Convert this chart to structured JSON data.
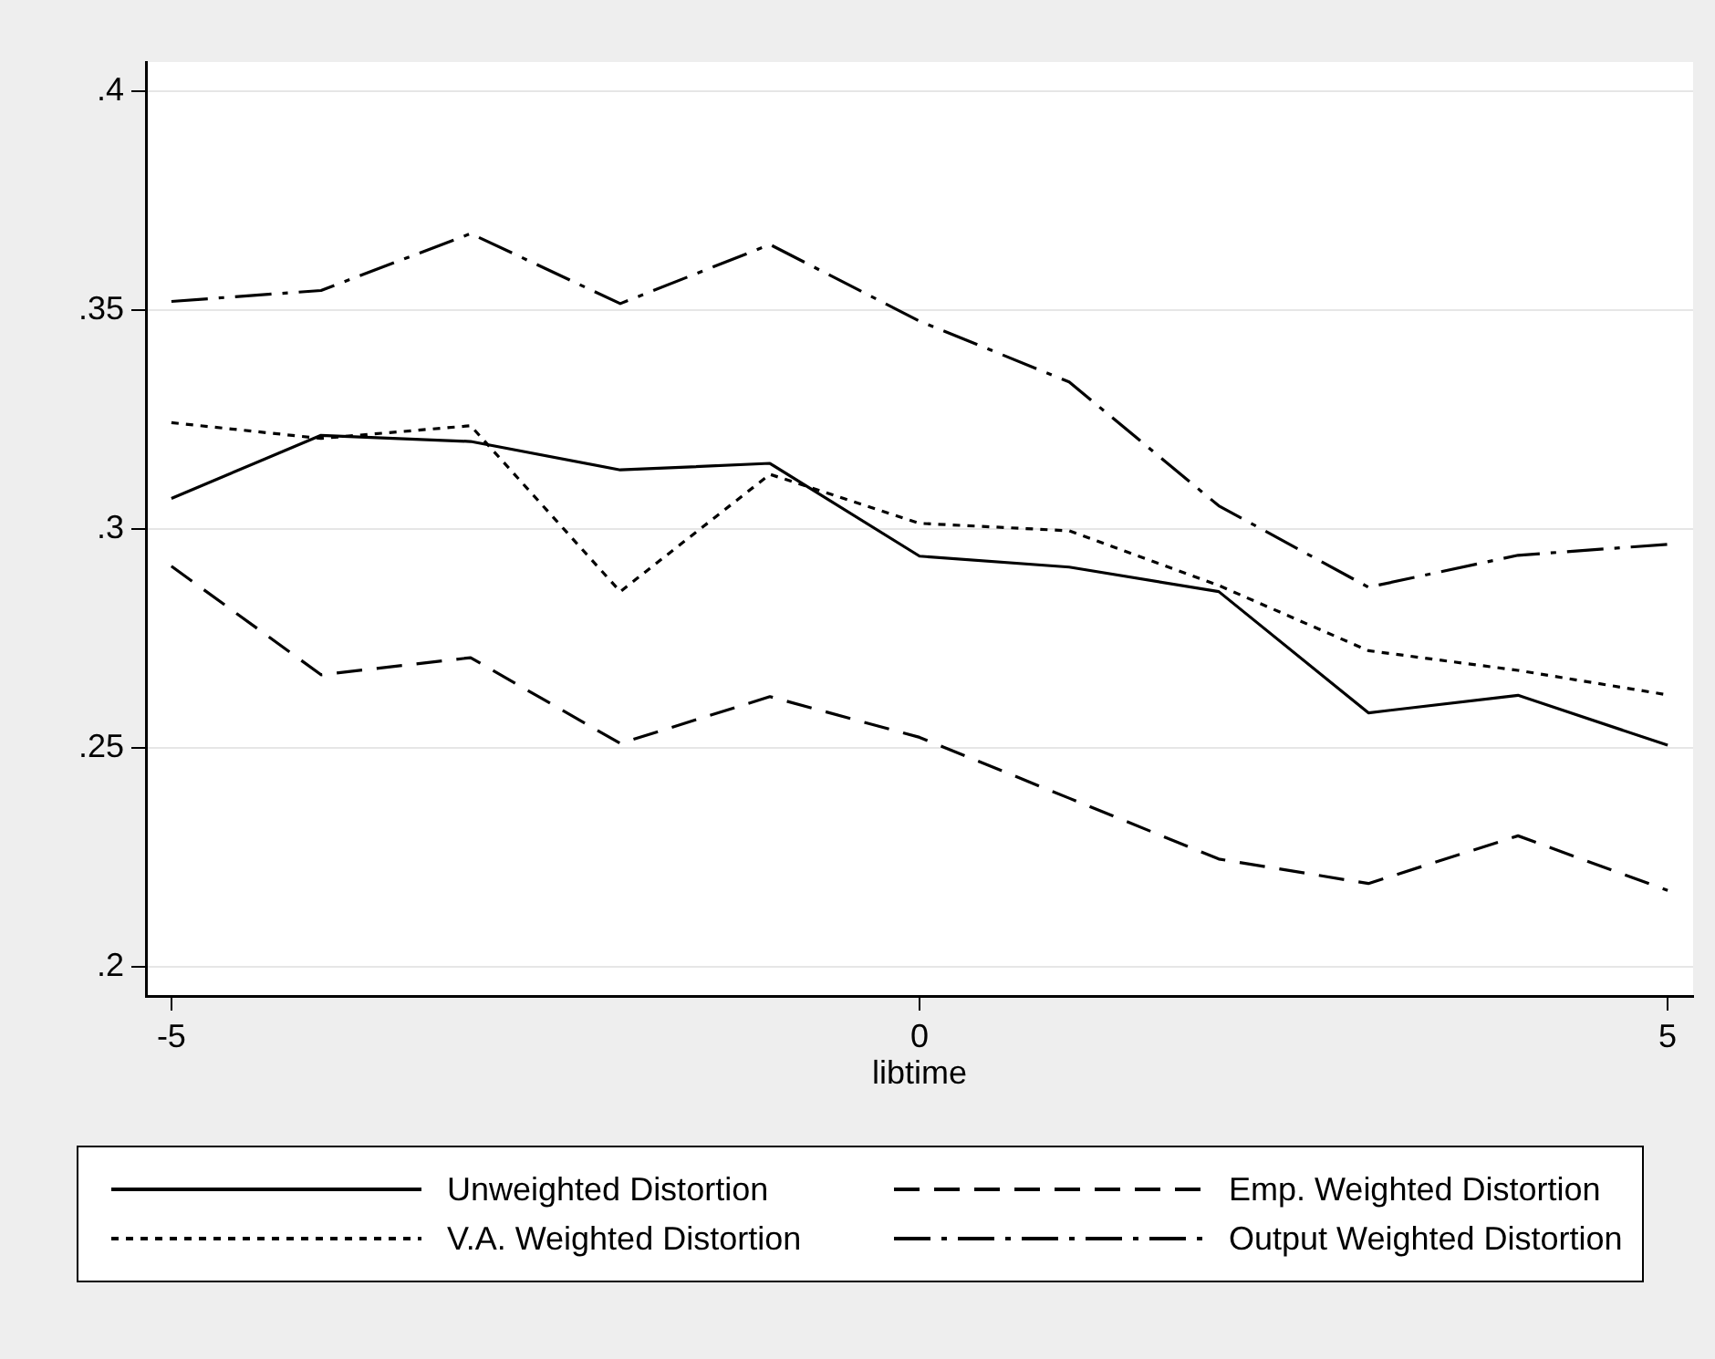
{
  "chart_data": {
    "type": "line",
    "xlabel": "libtime",
    "x": [
      -5,
      -4,
      -3,
      -2,
      -1,
      0,
      1,
      2,
      3,
      4,
      5
    ],
    "xlim": [
      -5.17,
      5.17
    ],
    "xticks": [
      -5,
      0,
      5
    ],
    "ylim": [
      0.1933,
      0.4067
    ],
    "yticks": [
      {
        "value": 0.2,
        "label": ".2"
      },
      {
        "value": 0.25,
        "label": ".25"
      },
      {
        "value": 0.3,
        "label": ".3"
      },
      {
        "value": 0.35,
        "label": ".35"
      },
      {
        "value": 0.4,
        "label": ".4"
      }
    ],
    "grid": "y",
    "legend": "bottom",
    "marker": "none",
    "series": [
      {
        "name": "Unweighted Distortion",
        "color": "#000000",
        "line_style": "solid",
        "values": [
          0.307,
          0.3214,
          0.32,
          0.3135,
          0.315,
          0.2938,
          0.2913,
          0.2857,
          0.258,
          0.262,
          0.2506
        ]
      },
      {
        "name": "Emp. Weighted Distortion",
        "color": "#000000",
        "line_style": "dashed",
        "values": [
          0.2915,
          0.2667,
          0.2706,
          0.251,
          0.2617,
          0.2524,
          0.2385,
          0.2246,
          0.219,
          0.2299,
          0.2174
        ]
      },
      {
        "name": "V.A. Weighted Distortion",
        "color": "#000000",
        "line_style": "dotted",
        "values": [
          0.3243,
          0.3207,
          0.3236,
          0.2857,
          0.3125,
          0.3013,
          0.2996,
          0.2871,
          0.2722,
          0.2677,
          0.2621
        ]
      },
      {
        "name": "Output Weighted Distortion",
        "color": "#000000",
        "line_style": "dashdot",
        "values": [
          0.352,
          0.3545,
          0.3675,
          0.3515,
          0.365,
          0.3475,
          0.3336,
          0.3053,
          0.2867,
          0.294,
          0.2965
        ]
      }
    ]
  }
}
